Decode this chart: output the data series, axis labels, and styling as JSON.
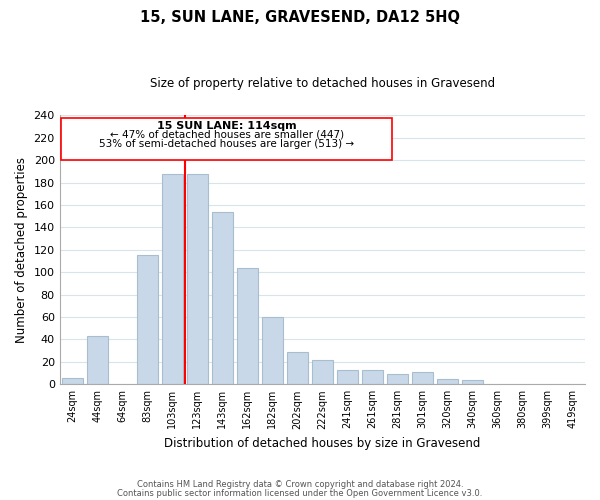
{
  "title": "15, SUN LANE, GRAVESEND, DA12 5HQ",
  "subtitle": "Size of property relative to detached houses in Gravesend",
  "xlabel": "Distribution of detached houses by size in Gravesend",
  "ylabel": "Number of detached properties",
  "categories": [
    "24sqm",
    "44sqm",
    "64sqm",
    "83sqm",
    "103sqm",
    "123sqm",
    "143sqm",
    "162sqm",
    "182sqm",
    "202sqm",
    "222sqm",
    "241sqm",
    "261sqm",
    "281sqm",
    "301sqm",
    "320sqm",
    "340sqm",
    "360sqm",
    "380sqm",
    "399sqm",
    "419sqm"
  ],
  "bar_heights": [
    6,
    43,
    0,
    115,
    188,
    188,
    154,
    104,
    60,
    29,
    22,
    13,
    13,
    9,
    11,
    5,
    4,
    0,
    0,
    0,
    0
  ],
  "bar_color": "#c8d8e8",
  "bar_edge_color": "#a8bece",
  "vline_position": 5,
  "vline_color": "red",
  "ylim": [
    0,
    240
  ],
  "yticks": [
    0,
    20,
    40,
    60,
    80,
    100,
    120,
    140,
    160,
    180,
    200,
    220,
    240
  ],
  "annotation_text_line1": "15 SUN LANE: 114sqm",
  "annotation_text_line2": "← 47% of detached houses are smaller (447)",
  "annotation_text_line3": "53% of semi-detached houses are larger (513) →",
  "footer_line1": "Contains HM Land Registry data © Crown copyright and database right 2024.",
  "footer_line2": "Contains public sector information licensed under the Open Government Licence v3.0."
}
